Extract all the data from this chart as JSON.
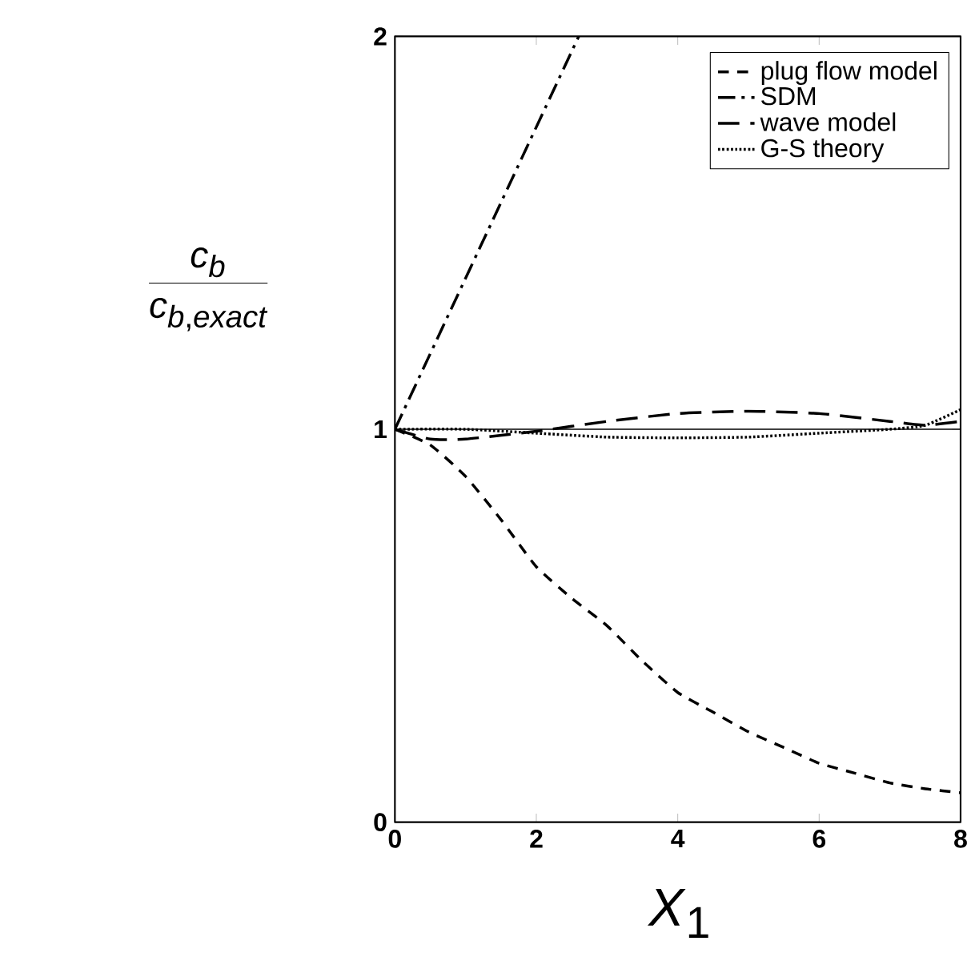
{
  "chart_data": {
    "type": "line",
    "xlabel": "*X*$_{1}$",
    "ylabel": "\\frac{c_b}{c_{b,exact}}",
    "x": [
      0,
      0.5,
      1,
      1.5,
      2,
      2.5,
      3,
      3.5,
      4,
      4.5,
      5,
      5.5,
      6,
      6.5,
      7,
      7.5,
      8
    ],
    "series": [
      {
        "name": "plug flow model",
        "color": "#000000",
        "line_style": "dashed",
        "values": [
          1,
          0.96,
          0.88,
          0.77,
          0.65,
          0.57,
          0.5,
          0.41,
          0.33,
          0.28,
          0.23,
          0.19,
          0.15,
          0.125,
          0.1,
          0.085,
          0.075
        ]
      },
      {
        "name": "SDM",
        "color": "#000000",
        "line_style": "dashdot",
        "x": [
          0,
          1.3,
          2.6
        ],
        "values": [
          1,
          1.5,
          2
        ]
      },
      {
        "name": "wave model",
        "color": "#000000",
        "line_style": "longdash",
        "x": [
          0,
          0.5,
          1,
          2,
          3,
          4,
          5,
          6,
          7,
          7.5,
          8
        ],
        "values": [
          1,
          0.975,
          0.975,
          0.995,
          1.02,
          1.04,
          1.046,
          1.04,
          1.02,
          1.01,
          1.02
        ]
      },
      {
        "name": "G-S theory",
        "color": "#000000",
        "line_style": "dotted",
        "x": [
          0,
          1,
          2,
          3,
          4,
          5,
          6,
          7,
          7.5,
          8
        ],
        "values": [
          1,
          1.0,
          0.99,
          0.98,
          0.978,
          0.98,
          0.99,
          1.0,
          1.01,
          1.05
        ]
      }
    ],
    "ref_lines": [
      {
        "axis": "y",
        "value": 1,
        "color": "#000000"
      }
    ],
    "xlim": [
      0,
      8
    ],
    "ylim": [
      0,
      2
    ],
    "xticks": [
      0,
      2,
      4,
      6,
      8
    ],
    "yticks": [
      0,
      1,
      2
    ],
    "grid": false,
    "legend": "top right",
    "marker": "none"
  }
}
